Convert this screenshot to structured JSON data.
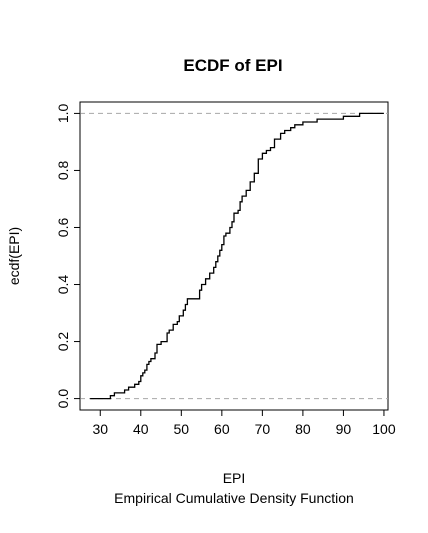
{
  "chart_data": {
    "type": "line",
    "style": "step",
    "title": "ECDF of EPI",
    "xlabel": "EPI",
    "sub": "Empirical Cumulative Density Function",
    "ylabel": "ecdf(EPI)",
    "xlim": [
      25,
      101
    ],
    "ylim": [
      -0.04,
      1.04
    ],
    "xticks": [
      30,
      40,
      50,
      60,
      70,
      80,
      90,
      100
    ],
    "yticks": [
      0.0,
      0.2,
      0.4,
      0.6,
      0.8,
      1.0
    ],
    "reference_lines": [
      0,
      1
    ],
    "grid": false,
    "series": [
      {
        "x": [
          27.5,
          32.5,
          33.5,
          34.0,
          36.0,
          37.0,
          38.5,
          39.5,
          40.0,
          40.5,
          41.0,
          41.5,
          42.0,
          42.5,
          43.5,
          44.0,
          45.0,
          46.5,
          47.0,
          48.0,
          49.0,
          49.5,
          50.5,
          51.0,
          51.5,
          52.0,
          54.5,
          55.0,
          56.0,
          57.0,
          58.0,
          58.5,
          59.0,
          59.5,
          60.0,
          60.5,
          61.0,
          62.0,
          62.5,
          63.0,
          64.0,
          64.5,
          65.0,
          66.0,
          67.0,
          68.0,
          69.0,
          70.0,
          71.0,
          72.0,
          73.0,
          74.5,
          75.5,
          77.0,
          78.0,
          80.0,
          83.5,
          86.0,
          90.0,
          92.5,
          94.0,
          100.0
        ],
        "y": [
          0.0,
          0.01,
          0.02,
          0.02,
          0.03,
          0.04,
          0.05,
          0.06,
          0.08,
          0.09,
          0.1,
          0.12,
          0.13,
          0.14,
          0.16,
          0.19,
          0.2,
          0.23,
          0.24,
          0.26,
          0.27,
          0.29,
          0.31,
          0.33,
          0.35,
          0.35,
          0.38,
          0.4,
          0.42,
          0.44,
          0.46,
          0.48,
          0.5,
          0.52,
          0.54,
          0.57,
          0.58,
          0.6,
          0.62,
          0.65,
          0.66,
          0.69,
          0.71,
          0.73,
          0.76,
          0.79,
          0.84,
          0.86,
          0.87,
          0.88,
          0.91,
          0.93,
          0.94,
          0.95,
          0.96,
          0.97,
          0.98,
          0.98,
          0.99,
          0.99,
          1.0,
          1.0
        ]
      }
    ]
  }
}
